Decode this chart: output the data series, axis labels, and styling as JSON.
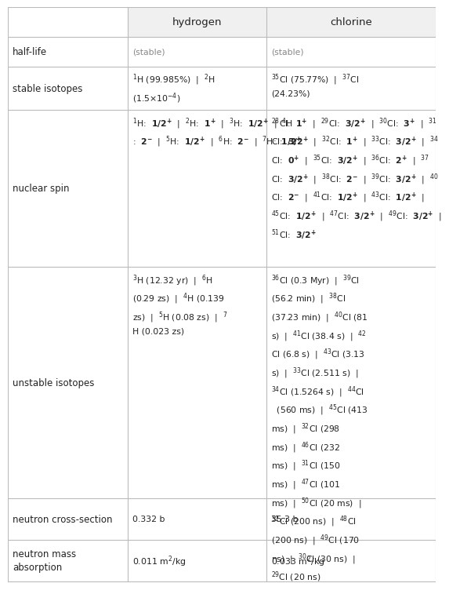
{
  "col_headers": [
    "",
    "hydrogen",
    "chlorine"
  ],
  "row_labels": [
    "half-life",
    "stable isotopes",
    "nuclear spin",
    "unstable isotopes",
    "neutron cross-section",
    "neutron mass\nabsorption"
  ],
  "half_life": [
    "(stable)",
    "(stable)"
  ],
  "stable_isotopes_h": "$^{1}$H (99.985%)  |  $^{2}$H\n(1.5×10$^{-4}$)",
  "stable_isotopes_cl": "$^{35}$Cl (75.77%)  |  $^{37}$Cl\n(24.23%)",
  "nuclear_spin_h": "$^{1}$H:  $\\mathbf{1/2^{+}}$  |  $^{2}$H:  $\\mathbf{1^{+}}$  |  $^{3}$H:  $\\mathbf{1/2^{+}}$  |  $^{4}$H\n:  $\\mathbf{2^{-}}$  |  $^{5}$H:  $\\mathbf{1/2^{+}}$  |  $^{6}$H:  $\\mathbf{2^{-}}$  |  $^{7}$H:  $\\mathbf{1/2^{+}}$",
  "nuclear_spin_cl": "$^{28}$Cl:  $\\mathbf{1^{+}}$  |  $^{29}$Cl:  $\\mathbf{3/2^{+}}$  |  $^{30}$Cl:  $\\mathbf{3^{+}}$  |  $^{31}$\nCl:  $\\mathbf{3/2^{+}}$  |  $^{32}$Cl:  $\\mathbf{1^{+}}$  |  $^{33}$Cl:  $\\mathbf{3/2^{+}}$  |  $^{34}$\nCl:  $\\mathbf{0^{+}}$  |  $^{35}$Cl:  $\\mathbf{3/2^{+}}$  |  $^{36}$Cl:  $\\mathbf{2^{+}}$  |  $^{37}$\nCl:  $\\mathbf{3/2^{+}}$  |  $^{38}$Cl:  $\\mathbf{2^{-}}$  |  $^{39}$Cl:  $\\mathbf{3/2^{+}}$  |  $^{40}$\nCl:  $\\mathbf{2^{-}}$  |  $^{41}$Cl:  $\\mathbf{1/2^{+}}$  |  $^{43}$Cl:  $\\mathbf{1/2^{+}}$  |\n$^{45}$Cl:  $\\mathbf{1/2^{+}}$  |  $^{47}$Cl:  $\\mathbf{3/2^{+}}$  |  $^{49}$Cl:  $\\mathbf{3/2^{+}}$  |\n$^{51}$Cl:  $\\mathbf{3/2^{+}}$",
  "unstable_h": "$^{3}$H (12.32 yr)  |  $^{6}$H\n(0.29 zs)  |  $^{4}$H (0.139\nzs)  |  $^{5}$H (0.08 zs)  |  $^{7}$\nH (0.023 zs)",
  "unstable_cl": "$^{36}$Cl (0.3 Myr)  |  $^{39}$Cl\n(56.2 min)  |  $^{38}$Cl\n(37.23 min)  |  $^{40}$Cl (81\ns)  |  $^{41}$Cl (38.4 s)  |  $^{42}$\nCl (6.8 s)  |  $^{43}$Cl (3.13\ns)  |  $^{33}$Cl (2.511 s)  |\n$^{34}$Cl (1.5264 s)  |  $^{44}$Cl\n  (560 ms)  |  $^{45}$Cl (413\nms)  |  $^{32}$Cl (298\nms)  |  $^{46}$Cl (232\nms)  |  $^{31}$Cl (150\nms)  |  $^{47}$Cl (101\nms)  |  $^{50}$Cl (20 ms)  |\n$^{51}$Cl (200 ns)  |  $^{48}$Cl\n(200 ns)  |  $^{49}$Cl (170\nns)  |  $^{30}$Cl (30 ns)  |\n$^{29}$Cl (20 ns)",
  "neutron_cross_h": "0.332 b",
  "neutron_cross_cl": "35.3 b",
  "neutron_mass_h": "0.011 m$^{2}$/kg",
  "neutron_mass_cl": "0.033 m$^{2}$/kg",
  "header_bg": "#f0f0f0",
  "line_color": "#bbbbbb",
  "text_color": "#222222",
  "gray_color": "#888888",
  "bg_color": "#ffffff",
  "header_fontsize": 9.5,
  "label_fontsize": 8.5,
  "cell_fontsize": 7.8
}
